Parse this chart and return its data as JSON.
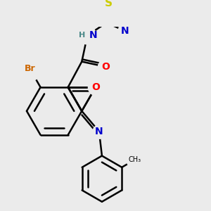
{
  "background_color": "#ebebeb",
  "bond_color": "#000000",
  "bond_width": 1.8,
  "atom_colors": {
    "Br": "#cc6600",
    "O": "#ff0000",
    "N": "#0000cc",
    "S": "#cccc00",
    "H": "#4a8888",
    "C": "#000000"
  },
  "font_size": 9,
  "fig_size": [
    3.0,
    3.0
  ],
  "dpi": 100
}
